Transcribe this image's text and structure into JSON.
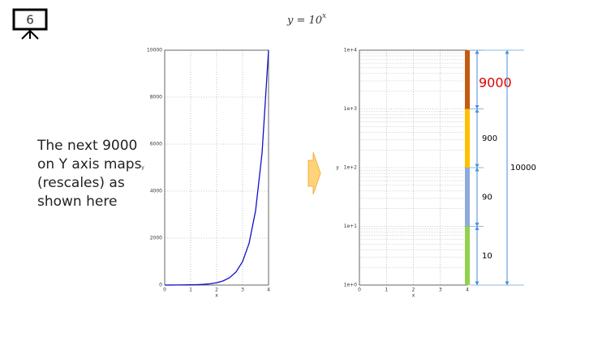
{
  "slide": {
    "number": "6",
    "title_base": "y = 10",
    "title_exponent": "x",
    "note_lines": [
      "The next 9000",
      "on Y axis maps",
      "(rescales) as",
      "shown here"
    ]
  },
  "chart_data": [
    {
      "type": "line",
      "xlabel": "x",
      "ylabel": "y",
      "x": [
        0,
        0.25,
        0.5,
        0.75,
        1,
        1.25,
        1.5,
        1.75,
        2,
        2.25,
        2.5,
        2.75,
        3,
        3.25,
        3.5,
        3.75,
        4
      ],
      "series": [
        {
          "color": "#1010c8",
          "values": [
            1,
            1.78,
            3.16,
            5.62,
            10,
            17.8,
            31.6,
            56.2,
            100,
            178,
            316,
            562,
            1000,
            1778,
            3162,
            5623,
            10000
          ]
        }
      ],
      "xlim": [
        0,
        4
      ],
      "xticks": [
        0,
        1,
        2,
        3,
        4
      ],
      "ylim": [
        0,
        10000
      ],
      "yticks": [
        0,
        2000,
        4000,
        6000,
        8000,
        10000
      ],
      "grid": true
    },
    {
      "type": "stacked_bar",
      "xlabel": "x",
      "ylabel": "y",
      "log_y": true,
      "x": [
        4
      ],
      "series": [
        {
          "color": "#92d050",
          "values": [
            10
          ]
        },
        {
          "color": "#8eaadb",
          "values": [
            90
          ]
        },
        {
          "color": "#ffc000",
          "values": [
            900
          ]
        },
        {
          "color": "#c55a11",
          "values": [
            9000
          ]
        }
      ],
      "total": 10000,
      "xlim": [
        0,
        4
      ],
      "xticks": [
        0,
        1,
        2,
        3,
        4
      ],
      "ylim": [
        1,
        10000
      ],
      "yticks": [
        {
          "value": 1,
          "label": "1e+0"
        },
        {
          "value": 10,
          "label": "1e+1"
        },
        {
          "value": 100,
          "label": "1e+2"
        },
        {
          "value": 1000,
          "label": "1e+3"
        },
        {
          "value": 10000,
          "label": "1e+4"
        }
      ],
      "grid": true
    }
  ]
}
